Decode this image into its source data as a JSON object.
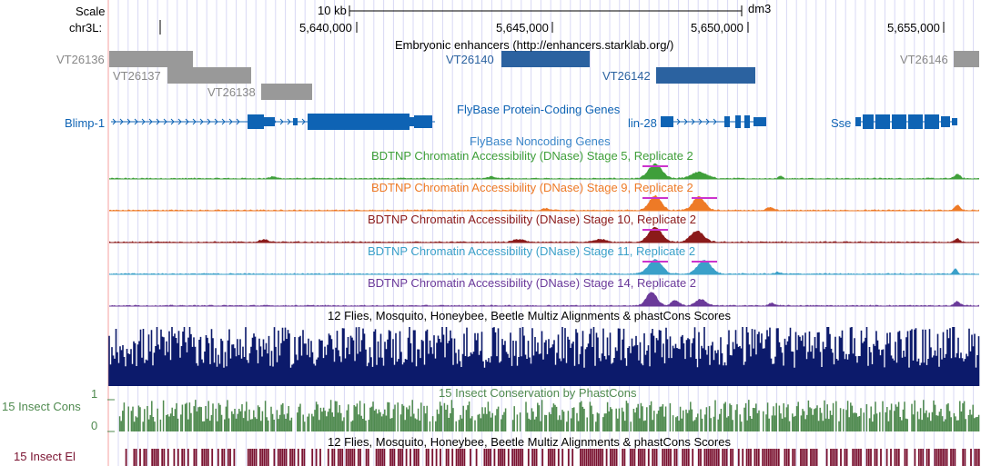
{
  "browser": {
    "scale_label": "Scale",
    "chrom_label": "chr3L:",
    "scale_bar_text": "10 kb",
    "assembly": "dm3",
    "positions": [
      "5,640,000",
      "5,645,000",
      "5,650,000",
      "5,655,000"
    ]
  },
  "colors": {
    "grid": "#d8d8f4",
    "gray_enhancer": "#999999",
    "blue_enhancer": "#2b62a0",
    "gene_blue": "#0e63b4",
    "stage5": "#3f9f3a",
    "stage9": "#ee7a26",
    "stage10": "#8b1a1a",
    "stage11": "#3aa0c9",
    "stage14": "#6b3a9a",
    "multiz": "#0c1a6b",
    "phastcons": "#4f8a4f",
    "elements": "#7a1230",
    "highlight": "#cc33cc"
  },
  "tracks": {
    "enhancers_title": "Embryonic enhancers (http://enhancers.starklab.org/)",
    "enhancers": [
      {
        "name": "VT26136",
        "style": "gray"
      },
      {
        "name": "VT26137",
        "style": "gray"
      },
      {
        "name": "VT26138",
        "style": "gray"
      },
      {
        "name": "VT26140",
        "style": "blue"
      },
      {
        "name": "VT26142",
        "style": "blue"
      },
      {
        "name": "VT26146",
        "style": "gray"
      }
    ],
    "protein_title": "FlyBase Protein-Coding Genes",
    "genes": [
      "Blimp-1",
      "lin-28",
      "Sse"
    ],
    "noncoding_title": "FlyBase Noncoding Genes",
    "dnase": [
      {
        "title": "BDTNP Chromatin Accessibility (DNase) Stage 5, Replicate 2",
        "color_key": "stage5"
      },
      {
        "title": "BDTNP Chromatin Accessibility (DNase) Stage 9, Replicate 2",
        "color_key": "stage9"
      },
      {
        "title": "BDTNP Chromatin Accessibility (DNase) Stage 10, Replicate 2",
        "color_key": "stage10"
      },
      {
        "title": "BDTNP Chromatin Accessibility (DNase) Stage 11, Replicate 2",
        "color_key": "stage11"
      },
      {
        "title": "BDTNP Chromatin Accessibility (DNase) Stage 14, Replicate 2",
        "color_key": "stage14"
      }
    ],
    "multiz_title": "12 Flies, Mosquito, Honeybee, Beetle Multiz Alignments & phastCons Scores",
    "phastcons_title": "15 Insect Conservation by PhastCons",
    "phastcons_side_label": "15 Insect Cons",
    "phastcons_y_max": "1",
    "phastcons_y_min": "0",
    "elements_title": "12 Flies, Mosquito, Honeybee, Beetle Multiz Alignments & phastCons Scores",
    "elements_side_label": "15 Insect El"
  }
}
